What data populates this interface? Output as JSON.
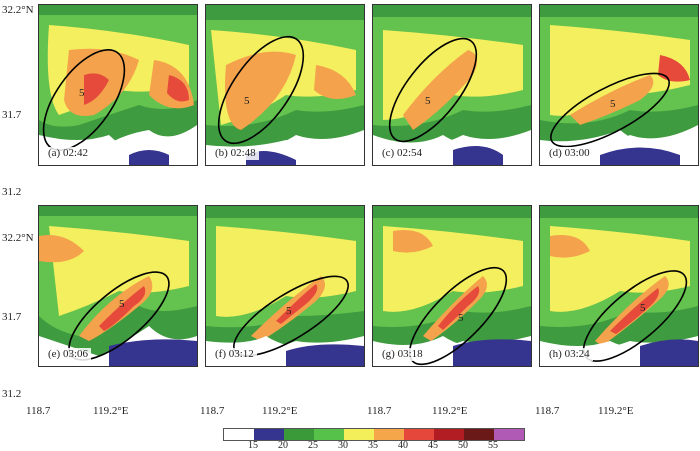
{
  "panels": [
    {
      "label": "(a) 02:42",
      "marker": "5"
    },
    {
      "label": "(b) 02:48",
      "marker": "5"
    },
    {
      "label": "(c) 02:54",
      "marker": "5"
    },
    {
      "label": "(d) 03:00",
      "marker": "5"
    },
    {
      "label": "(e) 03:06",
      "marker": "5"
    },
    {
      "label": "(f) 03:12",
      "marker": "5"
    },
    {
      "label": "(g) 03:18",
      "marker": "5"
    },
    {
      "label": "(h) 03:24",
      "marker": "5"
    }
  ],
  "y_axis": {
    "top": "32.2°N",
    "mid": "31.7",
    "bottom": "31.2"
  },
  "x_axis": [
    "118.7",
    "119.2°E",
    "118.7",
    "119.2°E",
    "118.7",
    "119.2°E",
    "118.7",
    "119.2°E"
  ],
  "colorbar": {
    "ticks": [
      "15",
      "20",
      "25",
      "30",
      "35",
      "40",
      "45",
      "50",
      "55"
    ],
    "colors": [
      "#ffffff",
      "#35348f",
      "#3a9a3a",
      "#57c24a",
      "#f2ef5a",
      "#f5a64b",
      "#e5483a",
      "#b11d22",
      "#6b1818",
      "#b15ab5"
    ]
  },
  "colors": {
    "blue": "#35348f",
    "green": "#3f9b3f",
    "lightgreen": "#64c24e",
    "yellow": "#f4ef5e",
    "orange": "#f4a24c",
    "red": "#e54a3a"
  }
}
